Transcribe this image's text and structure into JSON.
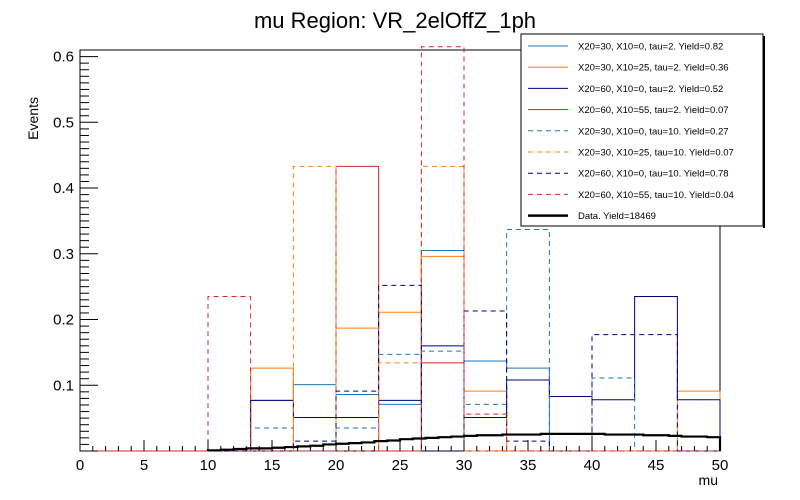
{
  "chart_data": {
    "type": "histogram",
    "title": "mu Region: VR_2elOffZ_1ph",
    "xlabel": "mu",
    "ylabel": "Events",
    "xlim": [
      0,
      50
    ],
    "ylim": [
      0,
      0.61
    ],
    "x_ticks": [
      0,
      5,
      10,
      15,
      20,
      25,
      30,
      35,
      40,
      45,
      50
    ],
    "y_ticks": [
      0.1,
      0.2,
      0.3,
      0.4,
      0.5,
      0.6
    ],
    "bin_edges": [
      0,
      3.33,
      6.67,
      10,
      13.33,
      16.67,
      20,
      23.33,
      26.67,
      30,
      33.33,
      36.67,
      40,
      43.33,
      46.67,
      50
    ],
    "series": [
      {
        "name": "X20=30, X10=0, tau=2. Yield=0.82",
        "color": "#1f77b4",
        "dash": false,
        "values": [
          0,
          0,
          0,
          0,
          0.077,
          0.101,
          0.086,
          0.071,
          0.305,
          0.137,
          0.126,
          0,
          0,
          0,
          0
        ]
      },
      {
        "name": "X20=30, X10=25, tau=2. Yield=0.36",
        "color": "#ff7f0e",
        "dash": false,
        "values": [
          0,
          0,
          0,
          0,
          0.126,
          0,
          0.187,
          0.211,
          0.296,
          0.091,
          0,
          0,
          0,
          0,
          0.091
        ]
      },
      {
        "name": "X20=60, X10=0, tau=2. Yield=0.52",
        "color": "#000080",
        "dash": false,
        "values": [
          0,
          0,
          0,
          0,
          0.077,
          0.051,
          0.051,
          0.077,
          0.16,
          0.051,
          0.108,
          0.083,
          0.078,
          0.235,
          0.078
        ]
      },
      {
        "name": "X20=60, X10=55, tau=2. Yield=0.07",
        "color": "#d62728",
        "dash": false,
        "values": [
          0,
          0,
          0,
          0,
          0,
          0,
          0.433,
          0,
          0.134,
          0,
          0,
          0,
          0,
          0,
          0
        ]
      },
      {
        "name": "X20=30, X10=0, tau=10. Yield=0.27",
        "color": "#1f77b4",
        "dash": true,
        "values": [
          0,
          0,
          0,
          0,
          0.035,
          0,
          0.035,
          0.147,
          0.152,
          0.071,
          0.337,
          0,
          0.111,
          0,
          0
        ]
      },
      {
        "name": "X20=30, X10=25, tau=10. Yield=0.07",
        "color": "#ff7f0e",
        "dash": true,
        "values": [
          0,
          0,
          0,
          0,
          0,
          0.433,
          0,
          0.134,
          0.433,
          0,
          0,
          0,
          0,
          0,
          0
        ]
      },
      {
        "name": "X20=60, X10=0, tau=10. Yield=0.78",
        "color": "#000080",
        "dash": true,
        "values": [
          0,
          0,
          0,
          0,
          0,
          0.015,
          0.091,
          0.252,
          0,
          0.213,
          0.015,
          0,
          0.177,
          0.177,
          0
        ]
      },
      {
        "name": "X20=60, X10=55, tau=10. Yield=0.04",
        "color": "#d62728",
        "dash": true,
        "values": [
          0,
          0,
          0,
          0.235,
          0,
          0,
          0,
          0,
          0.615,
          0.056,
          0,
          0,
          0,
          0,
          0
        ]
      }
    ],
    "data_series": {
      "name": "Data. Yield=18469",
      "color": "#000000",
      "x_start": 10,
      "bin_width": 1,
      "values": [
        0.001,
        0.002,
        0.003,
        0.004,
        0.004,
        0.005,
        0.006,
        0.007,
        0.008,
        0.01,
        0.011,
        0.012,
        0.013,
        0.015,
        0.016,
        0.018,
        0.019,
        0.02,
        0.021,
        0.022,
        0.023,
        0.024,
        0.024,
        0.025,
        0.025,
        0.025,
        0.026,
        0.026,
        0.026,
        0.026,
        0.026,
        0.025,
        0.025,
        0.025,
        0.024,
        0.024,
        0.023,
        0.022,
        0.022,
        0.021
      ]
    }
  }
}
